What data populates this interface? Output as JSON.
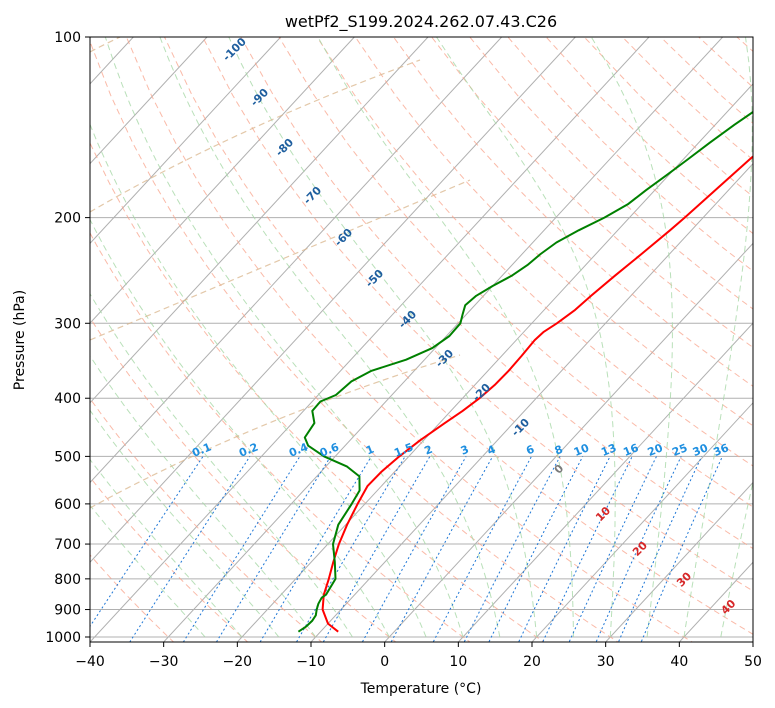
{
  "chart_data": {
    "type": "line",
    "title": "wetPf2_S199.2024.262.07.43.C26",
    "xlabel": "Temperature (°C)",
    "ylabel": "Pressure (hPa)",
    "xlim": [
      -40,
      50
    ],
    "ylim_pressure": [
      1050,
      100
    ],
    "y_scale": "log",
    "x_ticks": [
      -40,
      -30,
      -20,
      -10,
      0,
      10,
      20,
      30,
      40,
      50
    ],
    "x_tick_labels": [
      "−40",
      "−30",
      "−20",
      "−10",
      "0",
      "10",
      "20",
      "30",
      "40",
      "50"
    ],
    "y_ticks": [
      100,
      200,
      300,
      400,
      500,
      600,
      700,
      800,
      900,
      1000
    ],
    "y_tick_labels": [
      "100",
      "200",
      "300",
      "400",
      "500",
      "600",
      "700",
      "800",
      "900",
      "1000"
    ],
    "grid": true,
    "skew": "skew-T log-p",
    "background_lines": {
      "dry_adiabats": "dashed light red",
      "moist_adiabats": "dashed light green",
      "mixing_ratio_lines": "dotted blue",
      "isotherms": "solid gray skewed",
      "ccl_arcs": "dashed tan"
    },
    "mixing_ratio_labels": [
      "0.1",
      "0.2",
      "0.4",
      "0.6",
      "1",
      "1.5",
      "2",
      "3",
      "4",
      "6",
      "8",
      "10",
      "13",
      "16",
      "20",
      "25",
      "30",
      "36"
    ],
    "mixing_ratio_values": [
      0.1,
      0.2,
      0.4,
      0.6,
      1,
      1.5,
      2,
      3,
      4,
      6,
      8,
      10,
      13,
      16,
      20,
      25,
      30,
      36
    ],
    "isotherm_labels": [
      "-100",
      "-90",
      "-80",
      "-70",
      "-60",
      "-50",
      "-40",
      "-30",
      "-20",
      "-10"
    ],
    "isotherm_label_values": [
      -100,
      -90,
      -80,
      -70,
      -60,
      -50,
      -40,
      -30,
      -20,
      -10
    ],
    "moist_adiabat_labels": [
      "0",
      "10",
      "20",
      "30",
      "40"
    ],
    "moist_adiabat_label_values": [
      0,
      10,
      20,
      30,
      40
    ],
    "moist_adiabat_label_pressures": [
      530,
      630,
      720,
      810,
      900
    ],
    "series": [
      {
        "color": "#ff0000",
        "points": [
          [
            980,
            -7.6
          ],
          [
            950,
            -10.0
          ],
          [
            900,
            -12.5
          ],
          [
            850,
            -14.2
          ],
          [
            800,
            -15.5
          ],
          [
            750,
            -17.0
          ],
          [
            700,
            -18.5
          ],
          [
            650,
            -19.8
          ],
          [
            600,
            -21.0
          ],
          [
            560,
            -21.9
          ],
          [
            530,
            -21.8
          ],
          [
            500,
            -21.3
          ],
          [
            470,
            -20.5
          ],
          [
            440,
            -19.3
          ],
          [
            420,
            -18.4
          ],
          [
            400,
            -17.7
          ],
          [
            380,
            -17.3
          ],
          [
            360,
            -17.2
          ],
          [
            340,
            -17.3
          ],
          [
            320,
            -17.5
          ],
          [
            310,
            -17.3
          ],
          [
            300,
            -16.6
          ],
          [
            285,
            -15.8
          ],
          [
            270,
            -15.4
          ],
          [
            250,
            -14.7
          ],
          [
            230,
            -13.8
          ],
          [
            210,
            -12.9
          ],
          [
            200,
            -12.5
          ],
          [
            180,
            -11.8
          ],
          [
            160,
            -11.0
          ],
          [
            150,
            -10.4
          ],
          [
            140,
            -9.6
          ],
          [
            130,
            -8.2
          ],
          [
            120,
            -6.4
          ],
          [
            110,
            -4.5
          ],
          [
            100,
            -2.7
          ]
        ]
      },
      {
        "color": "#008000",
        "points": [
          [
            980,
            -13.0
          ],
          [
            960,
            -12.6
          ],
          [
            940,
            -12.5
          ],
          [
            920,
            -12.7
          ],
          [
            900,
            -13.3
          ],
          [
            880,
            -13.8
          ],
          [
            860,
            -14.1
          ],
          [
            850,
            -13.9
          ],
          [
            800,
            -14.6
          ],
          [
            750,
            -16.8
          ],
          [
            700,
            -19.3
          ],
          [
            650,
            -21.0
          ],
          [
            600,
            -21.8
          ],
          [
            570,
            -22.4
          ],
          [
            540,
            -24.2
          ],
          [
            520,
            -27.1
          ],
          [
            500,
            -31.5
          ],
          [
            480,
            -35.0
          ],
          [
            465,
            -36.5
          ],
          [
            440,
            -37.0
          ],
          [
            420,
            -38.8
          ],
          [
            405,
            -38.9
          ],
          [
            395,
            -37.6
          ],
          [
            385,
            -37.4
          ],
          [
            375,
            -37.2
          ],
          [
            360,
            -35.8
          ],
          [
            345,
            -32.5
          ],
          [
            330,
            -30.4
          ],
          [
            315,
            -29.6
          ],
          [
            300,
            -29.7
          ],
          [
            290,
            -30.5
          ],
          [
            280,
            -31.3
          ],
          [
            270,
            -31.0
          ],
          [
            260,
            -30.0
          ],
          [
            250,
            -28.7
          ],
          [
            240,
            -27.9
          ],
          [
            230,
            -27.5
          ],
          [
            220,
            -26.8
          ],
          [
            210,
            -25.3
          ],
          [
            200,
            -23.4
          ],
          [
            190,
            -21.9
          ],
          [
            180,
            -21.2
          ],
          [
            170,
            -20.3
          ],
          [
            160,
            -19.4
          ],
          [
            150,
            -18.5
          ],
          [
            140,
            -17.4
          ],
          [
            130,
            -16.0
          ],
          [
            120,
            -14.1
          ],
          [
            110,
            -12.4
          ],
          [
            100,
            -11.3
          ]
        ]
      }
    ]
  }
}
